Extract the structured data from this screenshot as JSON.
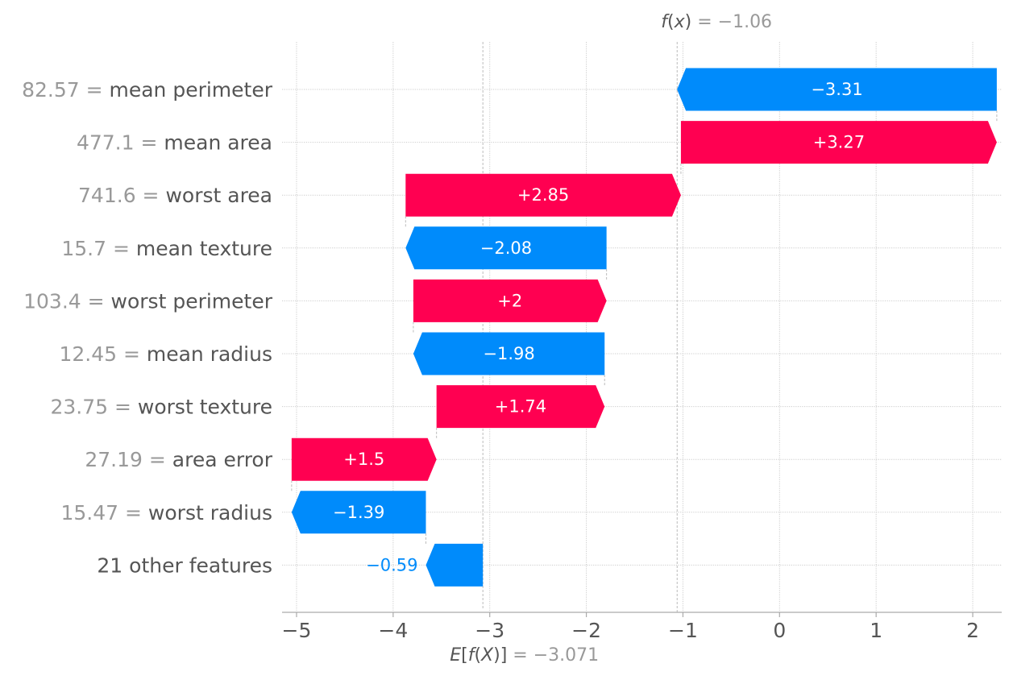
{
  "chart_data": {
    "type": "waterfall",
    "title": "",
    "base_value": -3.071,
    "output_value": -1.06,
    "fx_label": {
      "fn": "f",
      "arg": "x",
      "value_text": "= −1.06"
    },
    "efx_label": {
      "e": "E",
      "fn": "f",
      "arg": "X",
      "value_text": "= −3.071"
    },
    "xlim": [
      -5.15,
      2.3
    ],
    "xticks": [
      -5,
      -4,
      -3,
      -2,
      -1,
      0,
      1,
      2
    ],
    "xtick_labels": [
      "−5",
      "−4",
      "−3",
      "−2",
      "−1",
      "0",
      "1",
      "2"
    ],
    "features": [
      {
        "value": "82.57 =",
        "name": "mean perimeter",
        "contribution": -3.31,
        "label": "−3.31"
      },
      {
        "value": "477.1 =",
        "name": "mean area",
        "contribution": 3.27,
        "label": "+3.27"
      },
      {
        "value": "741.6 =",
        "name": "worst area",
        "contribution": 2.85,
        "label": "+2.85"
      },
      {
        "value": "15.7 =",
        "name": "mean texture",
        "contribution": -2.08,
        "label": "−2.08"
      },
      {
        "value": "103.4 =",
        "name": "worst perimeter",
        "contribution": 2.0,
        "label": "+2"
      },
      {
        "value": "12.45 =",
        "name": "mean radius",
        "contribution": -1.98,
        "label": "−1.98"
      },
      {
        "value": "23.75 =",
        "name": "worst texture",
        "contribution": 1.74,
        "label": "+1.74"
      },
      {
        "value": "27.19 =",
        "name": "area error",
        "contribution": 1.5,
        "label": "+1.5"
      },
      {
        "value": "15.47 =",
        "name": "worst radius",
        "contribution": -1.39,
        "label": "−1.39"
      },
      {
        "value": "",
        "name": "21 other features",
        "contribution": -0.59,
        "label": "−0.59"
      }
    ],
    "colors": {
      "positive": "#ff0051",
      "negative": "#008bfb",
      "axis": "#333333",
      "value_text": "#999999",
      "label_text": "#555555",
      "grid": "#cccccc"
    }
  }
}
